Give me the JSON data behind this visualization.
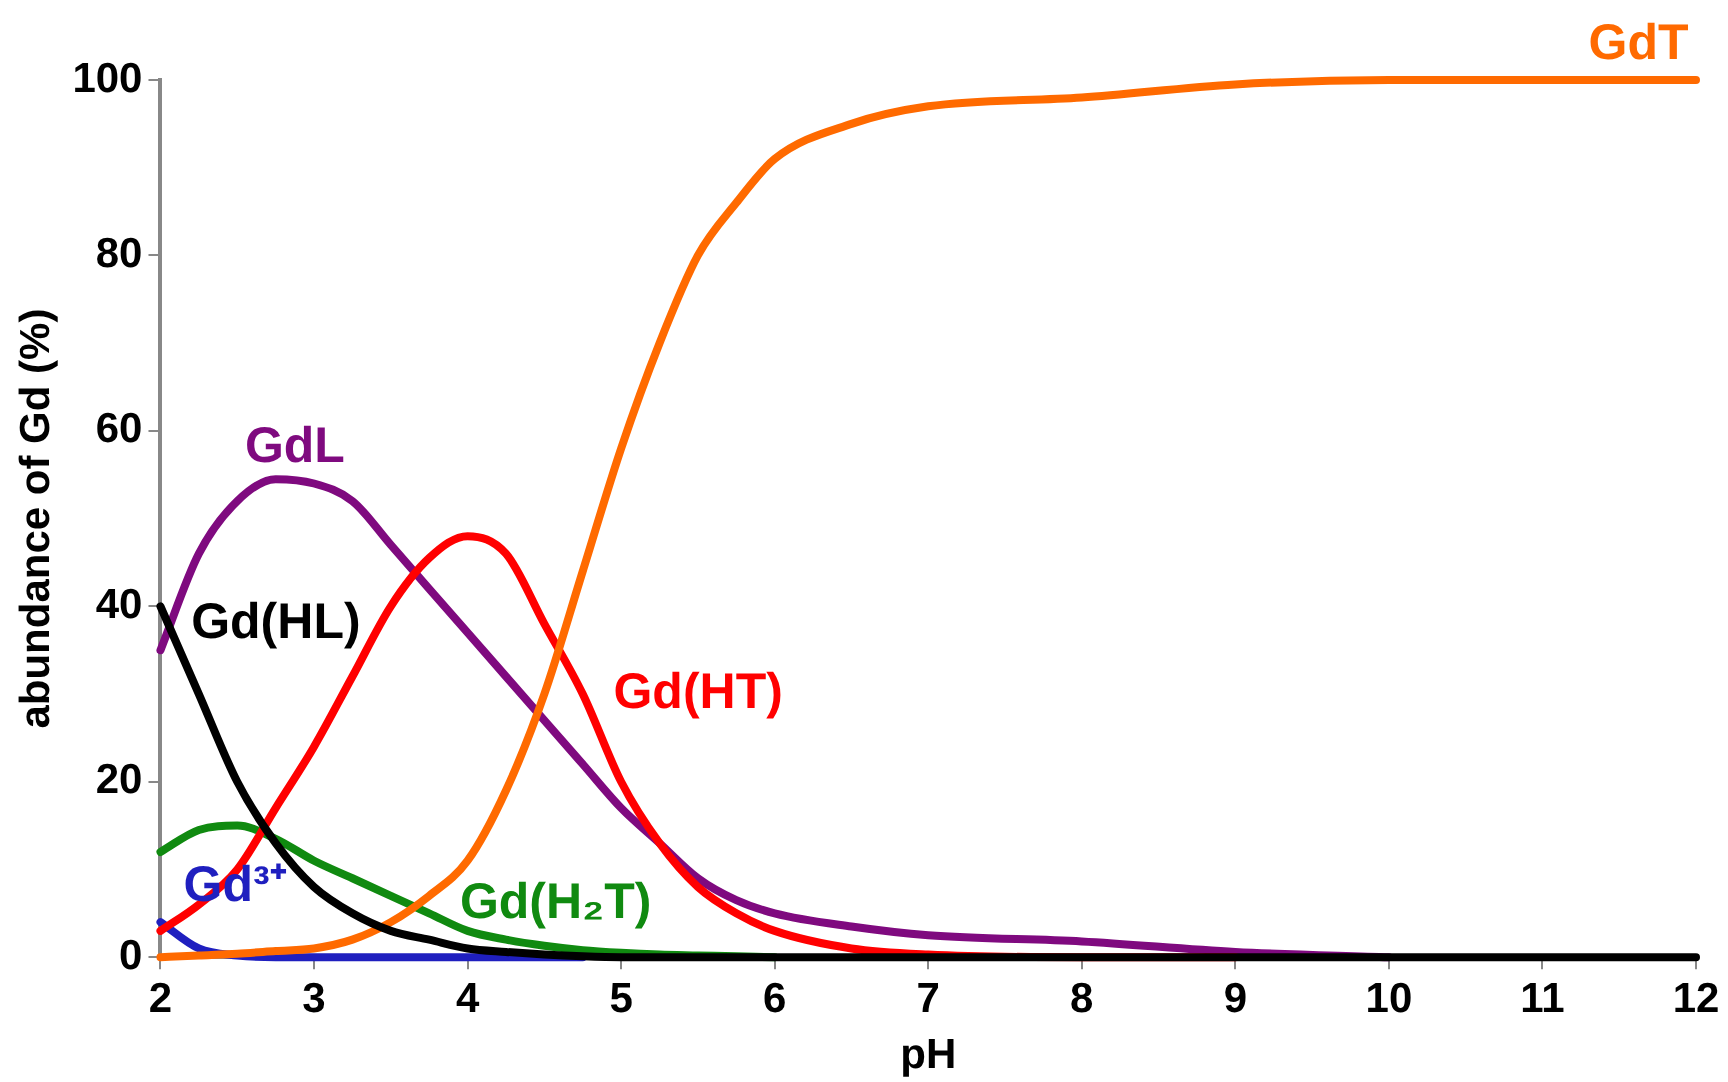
{
  "chart_data": {
    "type": "line",
    "xlabel": "pH",
    "ylabel": "abundance of Gd (%)",
    "x": [
      2,
      2.25,
      2.5,
      2.75,
      3,
      3.25,
      3.5,
      3.75,
      4,
      4.25,
      4.5,
      4.75,
      5,
      5.25,
      5.5,
      5.75,
      6,
      6.5,
      7,
      8,
      9,
      10,
      11,
      12
    ],
    "xlim": [
      2,
      12
    ],
    "xticks": [
      2,
      3,
      4,
      5,
      6,
      7,
      8,
      9,
      10,
      11,
      12
    ],
    "ylim": [
      0,
      100
    ],
    "yticks": [
      0,
      20,
      40,
      60,
      80,
      100
    ],
    "grid": false,
    "legend": false,
    "marker": "none",
    "line_style": "solid",
    "series": [
      {
        "name": "Gd³⁺",
        "color": "#1f1fbf",
        "values": [
          4,
          1,
          0.2,
          0,
          0,
          0,
          0,
          0,
          0,
          0,
          0,
          0,
          null,
          null,
          null,
          null,
          null,
          null,
          null,
          null,
          null,
          null,
          null,
          null
        ]
      },
      {
        "name": "Gd(H₂T)",
        "color": "#108a10",
        "values": [
          12,
          14.5,
          15,
          13.5,
          11,
          9,
          7,
          5,
          3,
          2,
          1.3,
          0.8,
          0.5,
          0.3,
          0.2,
          0.1,
          0,
          null,
          null,
          null,
          null,
          null,
          null,
          null
        ]
      },
      {
        "name": "GdL",
        "color": "#7f0a7f",
        "values": [
          35,
          46,
          52,
          54.5,
          54,
          52,
          47,
          42,
          37,
          32,
          27,
          22,
          17,
          13,
          9,
          6.5,
          5,
          3.5,
          2.5,
          1.8,
          0.6,
          0,
          null,
          null
        ]
      },
      {
        "name": "Gd(HT)",
        "color": "#ff0000",
        "values": [
          3,
          6,
          10,
          17,
          24,
          32,
          40,
          45.5,
          48,
          46,
          38,
          30,
          20,
          13,
          8,
          5,
          3,
          1,
          0.3,
          0,
          0,
          null,
          null,
          null
        ]
      },
      {
        "name": "GdT",
        "color": "#ff6a00",
        "values": [
          0,
          0.2,
          0.4,
          0.7,
          1,
          2,
          4,
          7,
          11,
          19,
          30,
          44,
          58,
          70,
          80,
          86,
          91,
          95,
          97,
          98,
          99.5,
          100,
          100,
          100
        ]
      },
      {
        "name": "Gd(HL)",
        "color": "#000000",
        "values": [
          40,
          30,
          20,
          13,
          8,
          5,
          3,
          2,
          1,
          0.6,
          0.3,
          0.1,
          0,
          0,
          0,
          0,
          0,
          0,
          0,
          0,
          0,
          0,
          0,
          0
        ]
      }
    ]
  }
}
